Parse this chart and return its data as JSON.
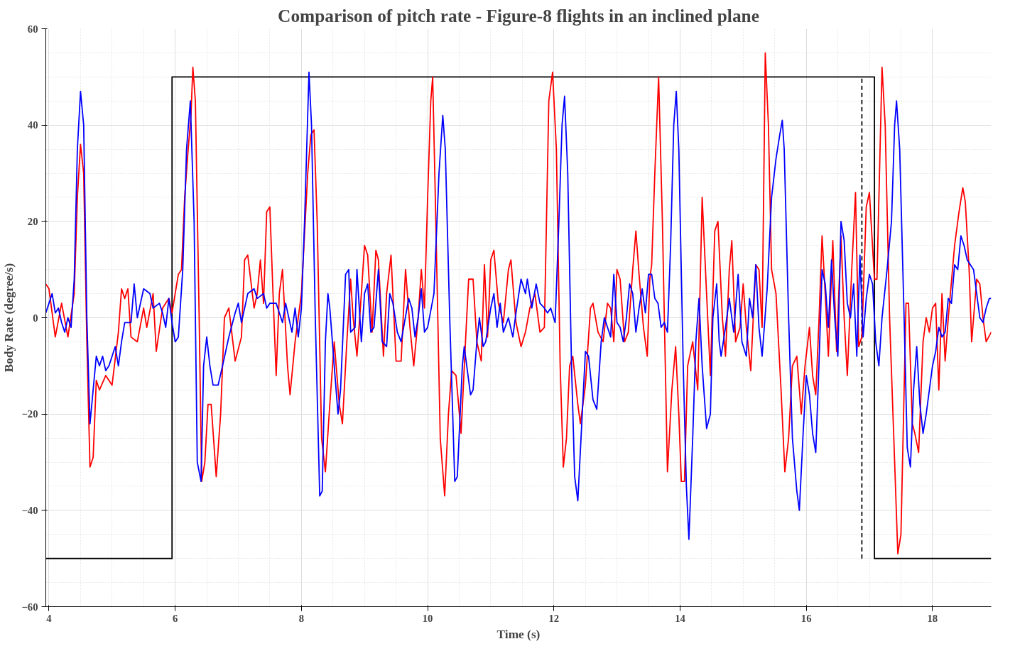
{
  "chart_data": {
    "type": "line",
    "title": "Comparison of pitch rate - Figure-8 flights in an inclined plane",
    "xlabel": "Time (s)",
    "ylabel": "Body Rate (degree/s)",
    "xlim": [
      3.95,
      18.93
    ],
    "ylim": [
      -60,
      60
    ],
    "xticks": [
      4,
      6,
      8,
      10,
      12,
      14,
      16,
      18
    ],
    "yticks": [
      -60,
      -40,
      -20,
      0,
      20,
      40,
      60
    ],
    "grid": true,
    "line_style": "solid",
    "series": [
      {
        "color": "#000000",
        "x": [
          3.95,
          5.95,
          5.95,
          17.08,
          17.08,
          18.93
        ],
        "values": [
          -50,
          -50,
          50,
          50,
          -50,
          -50
        ]
      },
      {
        "color": "#222222",
        "line_style": "dashed",
        "x": [
          16.88,
          16.88
        ],
        "values": [
          -50,
          50
        ]
      },
      {
        "color": "#ff0000",
        "x": [
          3.95,
          4.0,
          4.1,
          4.2,
          4.3,
          4.4,
          4.45,
          4.5,
          4.55,
          4.6,
          4.65,
          4.7,
          4.75,
          4.8,
          4.9,
          5.0,
          5.1,
          5.15,
          5.2,
          5.25,
          5.3,
          5.4,
          5.5,
          5.55,
          5.65,
          5.7,
          5.8,
          5.9,
          5.95,
          6.05,
          6.1,
          6.15,
          6.2,
          6.25,
          6.28,
          6.32,
          6.38,
          6.42,
          6.47,
          6.52,
          6.57,
          6.65,
          6.72,
          6.78,
          6.85,
          6.95,
          7.05,
          7.1,
          7.15,
          7.25,
          7.3,
          7.35,
          7.4,
          7.45,
          7.5,
          7.55,
          7.6,
          7.65,
          7.7,
          7.78,
          7.82,
          7.9,
          8.0,
          8.1,
          8.15,
          8.2,
          8.25,
          8.32,
          8.38,
          8.45,
          8.52,
          8.6,
          8.65,
          8.72,
          8.78,
          8.82,
          8.88,
          8.95,
          9.0,
          9.05,
          9.12,
          9.18,
          9.22,
          9.3,
          9.35,
          9.42,
          9.5,
          9.58,
          9.65,
          9.72,
          9.78,
          9.85,
          9.9,
          9.95,
          10.0,
          10.05,
          10.08,
          10.13,
          10.2,
          10.27,
          10.33,
          10.38,
          10.45,
          10.53,
          10.6,
          10.65,
          10.72,
          10.78,
          10.85,
          10.9,
          10.95,
          11.0,
          11.05,
          11.12,
          11.2,
          11.28,
          11.32,
          11.4,
          11.48,
          11.55,
          11.62,
          11.7,
          11.78,
          11.85,
          11.92,
          11.98,
          12.04,
          12.1,
          12.15,
          12.2,
          12.25,
          12.3,
          12.38,
          12.42,
          12.5,
          12.58,
          12.62,
          12.7,
          12.78,
          12.85,
          12.9,
          12.95,
          13.0,
          13.05,
          13.12,
          13.18,
          13.25,
          13.3,
          13.35,
          13.42,
          13.48,
          13.52,
          13.55,
          13.6,
          13.66,
          13.72,
          13.8,
          13.87,
          13.93,
          13.98,
          14.02,
          14.07,
          14.12,
          14.2,
          14.28,
          14.35,
          14.42,
          14.48,
          14.55,
          14.6,
          14.67,
          14.72,
          14.78,
          14.82,
          14.88,
          14.95,
          15.0,
          15.05,
          15.12,
          15.2,
          15.25,
          15.3,
          15.35,
          15.4,
          15.45,
          15.52,
          15.6,
          15.66,
          15.72,
          15.78,
          15.85,
          15.92,
          15.98,
          16.05,
          16.1,
          16.15,
          16.2,
          16.25,
          16.3,
          16.35,
          16.42,
          16.48,
          16.55,
          16.6,
          16.65,
          16.72,
          16.78,
          16.83,
          16.88,
          16.95,
          17.0,
          17.08,
          17.12,
          17.2,
          17.25,
          17.32,
          17.4,
          17.45,
          17.5,
          17.58,
          17.62,
          17.68,
          17.72,
          17.78,
          17.85,
          17.9,
          17.95,
          18.0,
          18.05,
          18.1,
          18.15,
          18.2,
          18.25,
          18.35,
          18.42,
          18.48,
          18.52,
          18.58,
          18.62,
          18.7,
          18.75,
          18.8,
          18.85,
          18.93
        ],
        "values": [
          7,
          6,
          -4,
          3,
          -4,
          5,
          25,
          36,
          30,
          -5,
          -31,
          -29,
          -13,
          -15,
          -12,
          -14,
          -3,
          6,
          4,
          6,
          -4,
          -5,
          2,
          -2,
          5,
          -7,
          2,
          4,
          1,
          9,
          10,
          25,
          34,
          42,
          52,
          45,
          0,
          -34,
          -30,
          -18,
          -18,
          -33,
          -20,
          0,
          2,
          -9,
          -4,
          12,
          13,
          2,
          5,
          12,
          3,
          22,
          23,
          5,
          -12,
          5,
          10,
          -10,
          -16,
          -5,
          5,
          30,
          38,
          39,
          20,
          -25,
          -32,
          -18,
          -5,
          -18,
          -22,
          -5,
          8,
          0,
          -8,
          5,
          15,
          13,
          -3,
          14,
          12,
          -8,
          5,
          13,
          -9,
          -9,
          10,
          -2,
          -10,
          0,
          10,
          2,
          25,
          45,
          50,
          20,
          -25,
          -37,
          -20,
          -11,
          -12,
          -24,
          -5,
          8,
          8,
          -5,
          -9,
          11,
          -4,
          12,
          14,
          3,
          -1,
          10,
          12,
          -1,
          -6,
          -3,
          2,
          5,
          -3,
          -2,
          45,
          51,
          35,
          -10,
          -31,
          -25,
          -10,
          -8,
          -18,
          -22,
          -14,
          2,
          3,
          -3,
          -5,
          3,
          2,
          -5,
          10,
          8,
          -5,
          -3,
          10,
          18,
          9,
          -2,
          -8,
          8,
          11,
          30,
          50,
          20,
          -32,
          -15,
          -6,
          -20,
          -34,
          -34,
          -10,
          -5,
          -15,
          25,
          5,
          -12,
          18,
          20,
          0,
          -8,
          10,
          16,
          -5,
          -2,
          7,
          -2,
          -11,
          11,
          10,
          -2,
          55,
          40,
          10,
          5,
          -15,
          -32,
          -25,
          -10,
          -8,
          -20,
          -10,
          -2,
          -12,
          -16,
          -1,
          17,
          5,
          -8,
          16,
          -7,
          17,
          0,
          -12,
          10,
          26,
          -6,
          -4,
          23,
          26,
          8,
          8,
          52,
          40,
          0,
          -30,
          -49,
          -45,
          3,
          3,
          -22,
          -24,
          -28,
          -5,
          0,
          -3,
          2,
          3,
          -15,
          5,
          -9,
          0,
          15,
          22,
          27,
          24,
          10,
          -5,
          8,
          7,
          0,
          -5,
          -3
        ]
      },
      {
        "color": "#0000ff",
        "x": [
          3.95,
          4.0,
          4.05,
          4.1,
          4.15,
          4.2,
          4.25,
          4.3,
          4.35,
          4.4,
          4.45,
          4.5,
          4.55,
          4.6,
          4.65,
          4.7,
          4.75,
          4.8,
          4.85,
          4.9,
          4.95,
          5.0,
          5.05,
          5.1,
          5.15,
          5.2,
          5.3,
          5.35,
          5.4,
          5.5,
          5.6,
          5.65,
          5.75,
          5.8,
          5.85,
          5.9,
          5.95,
          6.0,
          6.05,
          6.12,
          6.18,
          6.24,
          6.3,
          6.35,
          6.41,
          6.45,
          6.5,
          6.55,
          6.6,
          6.68,
          6.75,
          6.85,
          6.95,
          7.0,
          7.05,
          7.15,
          7.25,
          7.3,
          7.4,
          7.45,
          7.5,
          7.6,
          7.7,
          7.75,
          7.85,
          7.9,
          7.95,
          8.0,
          8.05,
          8.12,
          8.16,
          8.22,
          8.29,
          8.33,
          8.38,
          8.42,
          8.45,
          8.52,
          8.58,
          8.62,
          8.7,
          8.75,
          8.78,
          8.85,
          8.88,
          8.95,
          9.0,
          9.05,
          9.1,
          9.15,
          9.22,
          9.28,
          9.35,
          9.4,
          9.45,
          9.52,
          9.58,
          9.62,
          9.7,
          9.75,
          9.8,
          9.85,
          9.9,
          9.95,
          10.0,
          10.1,
          10.18,
          10.24,
          10.28,
          10.35,
          10.43,
          10.47,
          10.55,
          10.58,
          10.62,
          10.68,
          10.72,
          10.78,
          10.82,
          10.88,
          10.92,
          11.0,
          11.05,
          11.1,
          11.15,
          11.2,
          11.28,
          11.35,
          11.4,
          11.48,
          11.55,
          11.58,
          11.65,
          11.72,
          11.78,
          11.85,
          11.9,
          11.95,
          12.02,
          12.08,
          12.13,
          12.17,
          12.22,
          12.28,
          12.33,
          12.38,
          12.45,
          12.5,
          12.55,
          12.62,
          12.68,
          12.75,
          12.8,
          12.85,
          12.9,
          12.95,
          13.0,
          13.05,
          13.1,
          13.15,
          13.2,
          13.25,
          13.3,
          13.35,
          13.4,
          13.45,
          13.5,
          13.55,
          13.6,
          13.65,
          13.7,
          13.75,
          13.8,
          13.85,
          13.9,
          13.94,
          13.98,
          14.05,
          14.1,
          14.14,
          14.2,
          14.25,
          14.3,
          14.35,
          14.42,
          14.48,
          14.52,
          14.58,
          14.62,
          14.65,
          14.72,
          14.78,
          14.85,
          14.92,
          14.98,
          15.05,
          15.1,
          15.15,
          15.2,
          15.25,
          15.3,
          15.38,
          15.45,
          15.52,
          15.58,
          15.62,
          15.65,
          15.72,
          15.78,
          15.85,
          15.89,
          15.95,
          16.0,
          16.05,
          16.1,
          16.15,
          16.2,
          16.25,
          16.3,
          16.35,
          16.4,
          16.45,
          16.5,
          16.55,
          16.6,
          16.65,
          16.7,
          16.75,
          16.8,
          16.85,
          16.9,
          16.95,
          17.0,
          17.05,
          17.1,
          17.15,
          17.2,
          17.28,
          17.35,
          17.4,
          17.43,
          17.48,
          17.55,
          17.6,
          17.65,
          17.7,
          17.75,
          17.8,
          17.85,
          17.9,
          17.95,
          18.0,
          18.05,
          18.1,
          18.15,
          18.2,
          18.25,
          18.3,
          18.35,
          18.4,
          18.45,
          18.5,
          18.55,
          18.6,
          18.65,
          18.7,
          18.75,
          18.8,
          18.85,
          18.9,
          18.93
        ],
        "values": [
          1,
          3,
          5,
          1,
          2,
          -1,
          -3,
          0,
          -2,
          8,
          35,
          47,
          40,
          0,
          -22,
          -15,
          -8,
          -10,
          -8,
          -11,
          -10,
          -8,
          -6,
          -10,
          -5,
          -1,
          -1,
          7,
          0,
          6,
          5,
          2,
          3,
          1,
          -2,
          4,
          -1,
          -5,
          -4,
          10,
          35,
          45,
          20,
          -30,
          -34,
          -10,
          -4,
          -10,
          -14,
          -14,
          -10,
          -4,
          1,
          3,
          -1,
          5,
          6,
          4,
          5,
          2,
          3,
          3,
          -1,
          3,
          -3,
          2,
          -4,
          2,
          20,
          51,
          40,
          0,
          -37,
          -36,
          -5,
          5,
          2,
          -10,
          -20,
          -15,
          9,
          10,
          -3,
          -2,
          10,
          -5,
          5,
          7,
          -3,
          -2,
          10,
          -5,
          -6,
          5,
          3,
          -3,
          -5,
          -2,
          4,
          2,
          -4,
          0,
          6,
          -3,
          -2,
          5,
          30,
          42,
          35,
          0,
          -34,
          -33,
          -10,
          -6,
          -10,
          -16,
          -15,
          -5,
          0,
          -6,
          -5,
          2,
          5,
          -2,
          3,
          -3,
          0,
          -4,
          1,
          8,
          5,
          8,
          2,
          7,
          3,
          2,
          1,
          2,
          -1,
          20,
          40,
          46,
          30,
          -10,
          -33,
          -38,
          -20,
          -7,
          -8,
          -17,
          -19,
          -5,
          0,
          -2,
          -4,
          9,
          -1,
          -2,
          -5,
          0,
          7,
          5,
          -3,
          2,
          6,
          1,
          9,
          9,
          4,
          3,
          -2,
          -1,
          -3,
          15,
          40,
          47,
          35,
          -10,
          -35,
          -46,
          -25,
          -5,
          4,
          -10,
          -23,
          -20,
          0,
          7,
          -5,
          -8,
          -2,
          4,
          -3,
          9,
          -5,
          -8,
          4,
          0,
          11,
          -2,
          -8,
          6,
          25,
          33,
          38,
          41,
          35,
          0,
          -25,
          -36,
          -40,
          -24,
          -12,
          -16,
          -24,
          -28,
          -10,
          10,
          7,
          -2,
          12,
          0,
          -8,
          20,
          16,
          3,
          0,
          7,
          -8,
          13,
          -4,
          4,
          9,
          7,
          -5,
          -10,
          0,
          10,
          20,
          40,
          45,
          35,
          0,
          -27,
          -31,
          -15,
          -6,
          -18,
          -24,
          -20,
          -15,
          -10,
          -7,
          -2,
          -4,
          -3,
          4,
          3,
          11,
          10,
          17,
          15,
          12,
          11,
          10,
          5,
          0,
          -1,
          2,
          4,
          4
        ]
      }
    ]
  }
}
